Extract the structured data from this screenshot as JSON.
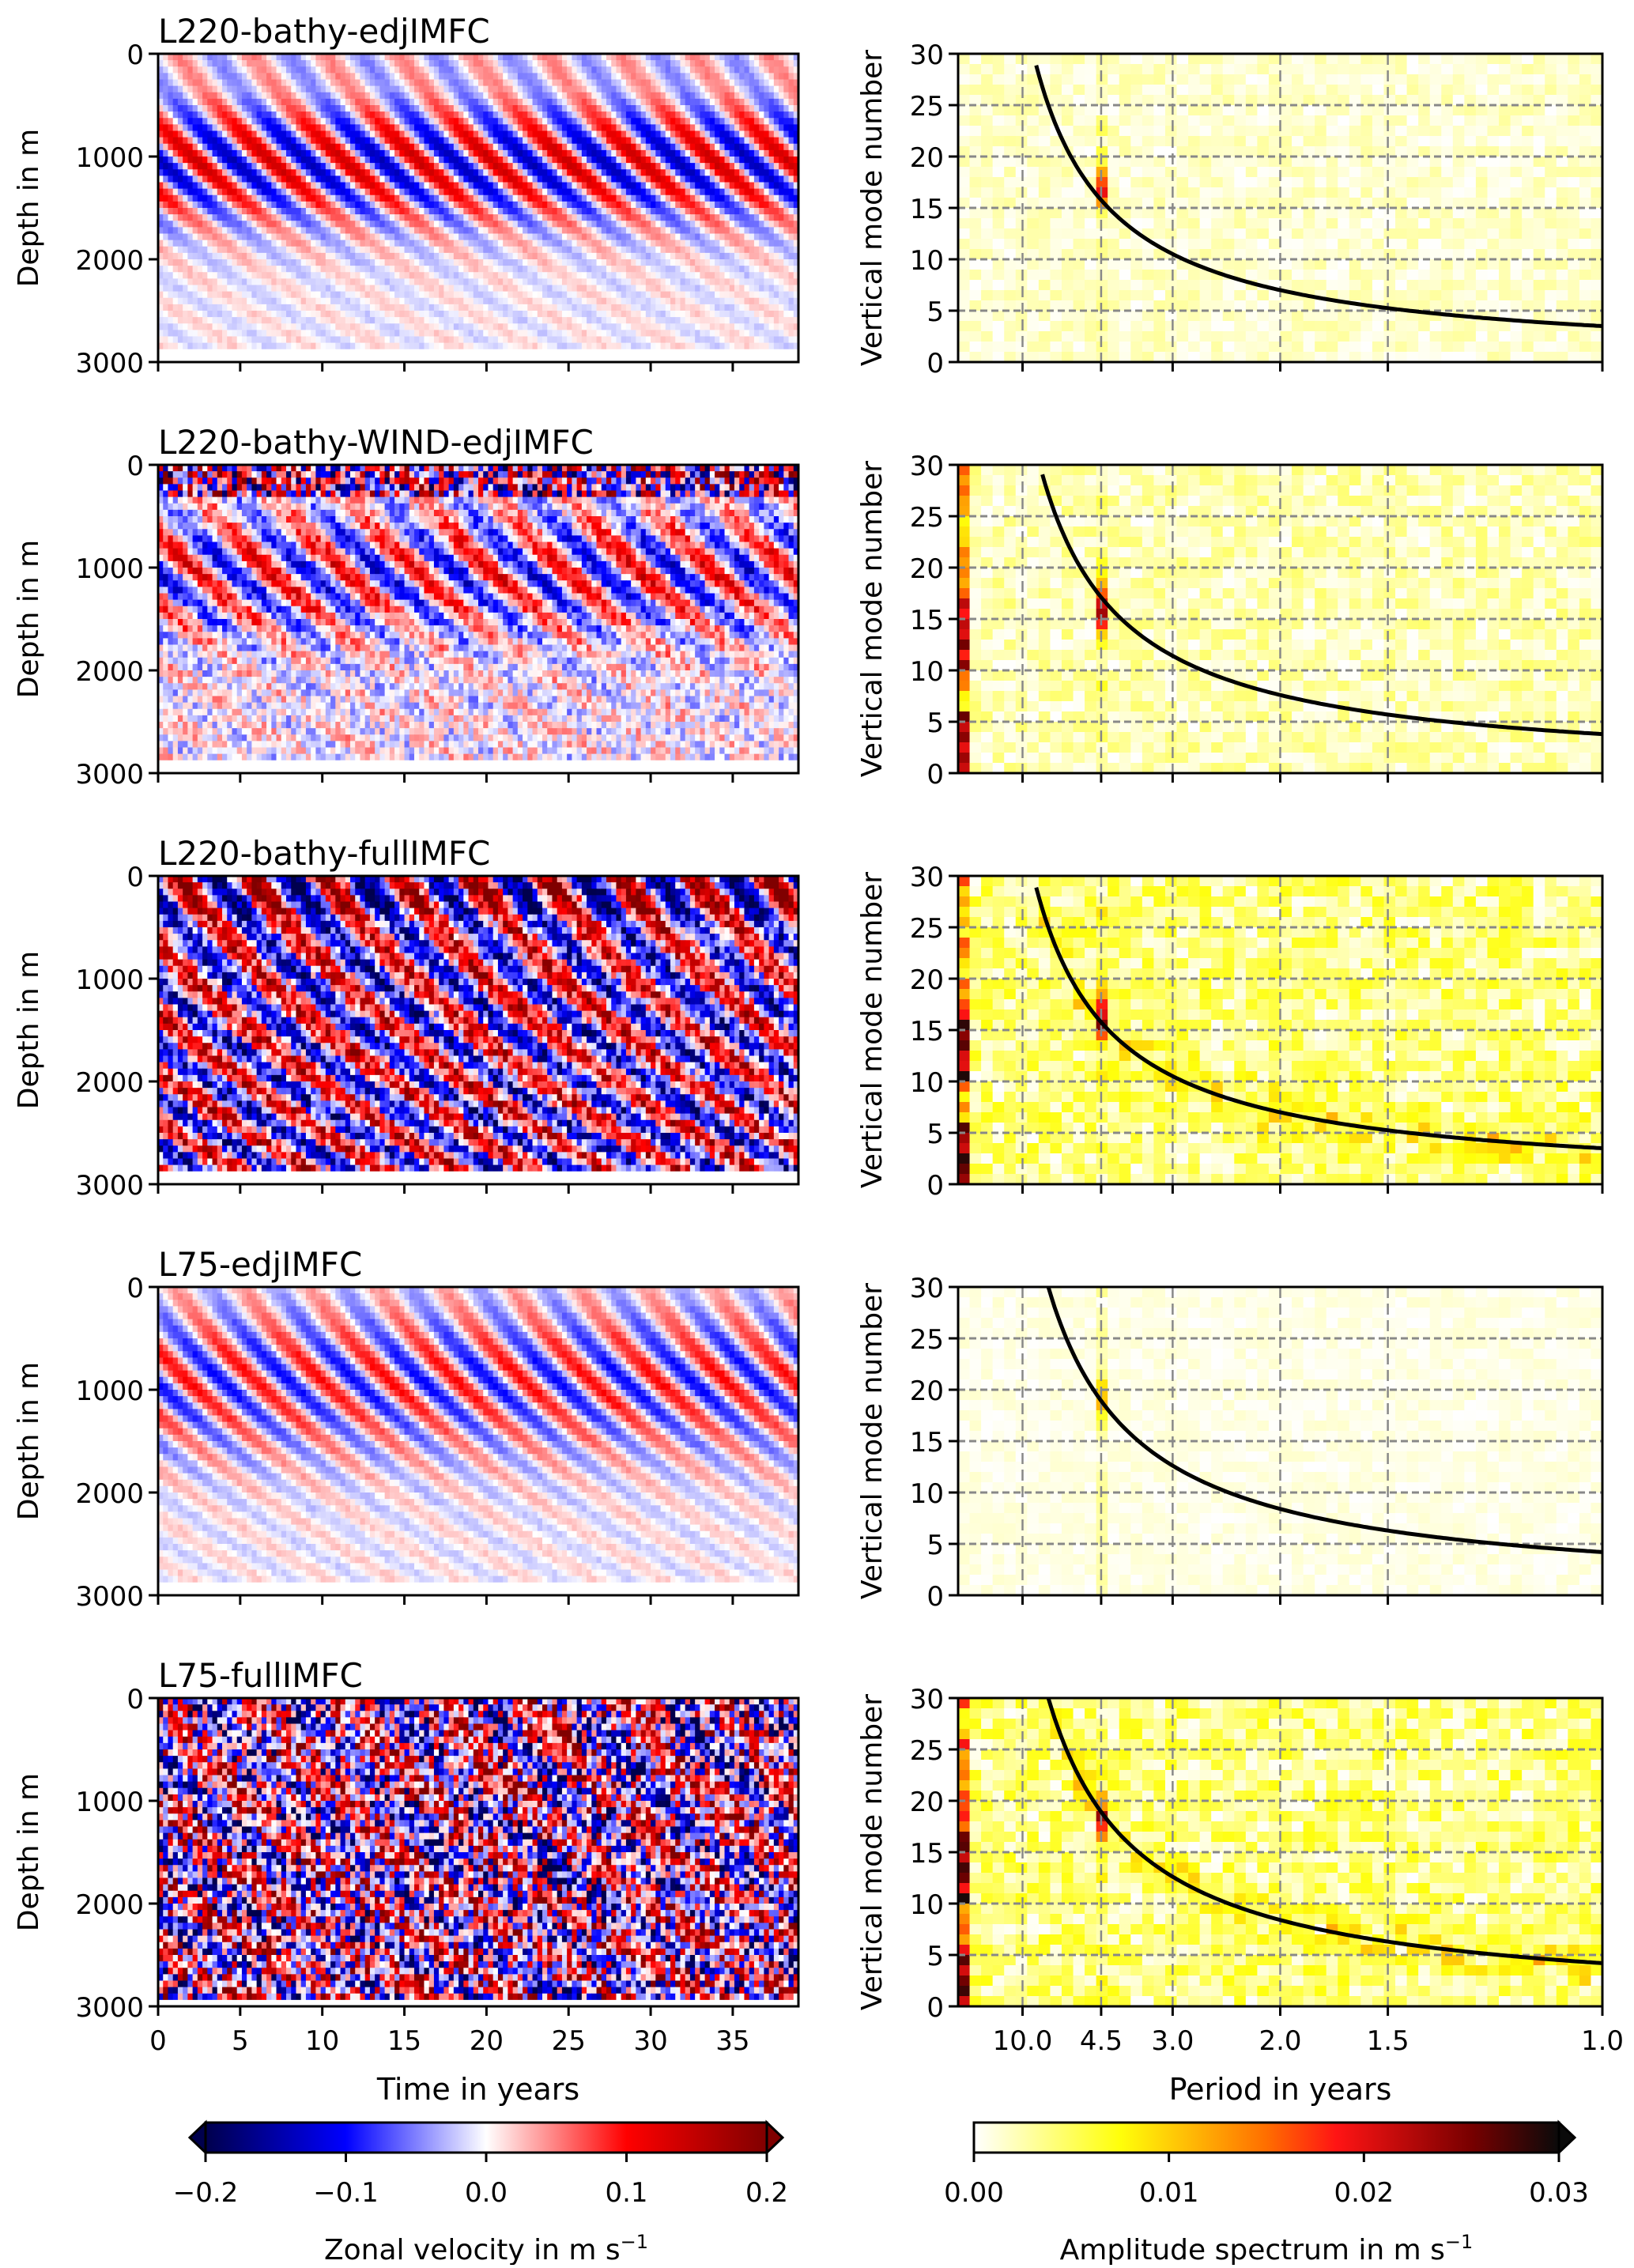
{
  "chart_data": [
    {
      "type": "heatmap",
      "title": "L220-bathy-edjIMFC",
      "xlabel": "",
      "ylabel": "Depth in m",
      "xlim": [
        0,
        39
      ],
      "ylim": [
        3000,
        0
      ],
      "xticks": [
        0,
        5,
        10,
        15,
        20,
        25,
        30,
        35
      ],
      "yticks": [
        0,
        1000,
        2000,
        3000
      ],
      "pattern": "edj",
      "noise": 0.05,
      "bottom_m": 2900
    },
    {
      "type": "heatmap",
      "title": "",
      "xlabel": "",
      "ylabel": "Vertical mode number",
      "xlim_labels": [
        "10.0",
        "4.5",
        "3.0",
        "2.0",
        "1.5",
        "1.0"
      ],
      "ylim": [
        0,
        30
      ],
      "yticks": [
        0,
        5,
        10,
        15,
        20,
        25,
        30
      ],
      "curve_mode_at_1yr": 3.5,
      "peak": {
        "period": 4.5,
        "mode": 17,
        "amplitude": 0.016
      },
      "background": 0.002
    },
    {
      "type": "heatmap",
      "title": "L220-bathy-WIND-edjIMFC",
      "xlabel": "",
      "ylabel": "Depth in m",
      "xlim": [
        0,
        39
      ],
      "ylim": [
        3000,
        0
      ],
      "xticks": [
        0,
        5,
        10,
        15,
        20,
        25,
        30,
        35
      ],
      "yticks": [
        0,
        1000,
        2000,
        3000
      ],
      "pattern": "wind",
      "noise": 0.3,
      "bottom_m": 2900
    },
    {
      "type": "heatmap",
      "title": "",
      "xlabel": "",
      "ylabel": "Vertical mode number",
      "xlim_labels": [
        "10.0",
        "4.5",
        "3.0",
        "2.0",
        "1.5",
        "1.0"
      ],
      "ylim": [
        0,
        30
      ],
      "yticks": [
        0,
        5,
        10,
        15,
        20,
        25,
        30
      ],
      "curve_mode_at_1yr": 3.8,
      "peak": {
        "period": 4.5,
        "mode": 16,
        "amplitude": 0.02
      },
      "background": 0.003
    },
    {
      "type": "heatmap",
      "title": "L220-bathy-fullIMFC",
      "xlabel": "",
      "ylabel": "Depth in m",
      "xlim": [
        0,
        39
      ],
      "ylim": [
        3000,
        0
      ],
      "xticks": [
        0,
        5,
        10,
        15,
        20,
        25,
        30,
        35
      ],
      "yticks": [
        0,
        1000,
        2000,
        3000
      ],
      "pattern": "full",
      "noise": 0.6,
      "bottom_m": 2900
    },
    {
      "type": "heatmap",
      "title": "",
      "xlabel": "",
      "ylabel": "Vertical mode number",
      "xlim_labels": [
        "10.0",
        "4.5",
        "3.0",
        "2.0",
        "1.5",
        "1.0"
      ],
      "ylim": [
        0,
        30
      ],
      "yticks": [
        0,
        5,
        10,
        15,
        20,
        25,
        30
      ],
      "curve_mode_at_1yr": 3.5,
      "peak": {
        "period": 4.5,
        "mode": 16,
        "amplitude": 0.017
      },
      "background": 0.005
    },
    {
      "type": "heatmap",
      "title": "L75-edjIMFC",
      "xlabel": "",
      "ylabel": "Depth in m",
      "xlim": [
        0,
        39
      ],
      "ylim": [
        3000,
        0
      ],
      "xticks": [
        0,
        5,
        10,
        15,
        20,
        25,
        30,
        35
      ],
      "yticks": [
        0,
        1000,
        2000,
        3000
      ],
      "pattern": "l75edj",
      "noise": 0.05,
      "bottom_m": 2900
    },
    {
      "type": "heatmap",
      "title": "",
      "xlabel": "",
      "ylabel": "Vertical mode number",
      "xlim_labels": [
        "10.0",
        "4.5",
        "3.0",
        "2.0",
        "1.5",
        "1.0"
      ],
      "ylim": [
        0,
        30
      ],
      "yticks": [
        0,
        5,
        10,
        15,
        20,
        25,
        30
      ],
      "curve_mode_at_1yr": 4.2,
      "peak": {
        "period": 4.5,
        "mode": 19,
        "amplitude": 0.009
      },
      "background": 0.001
    },
    {
      "type": "heatmap",
      "title": "L75-fullIMFC",
      "xlabel": "Time in years",
      "ylabel": "Depth in m",
      "xlim": [
        0,
        39
      ],
      "ylim": [
        3000,
        0
      ],
      "xticks": [
        0,
        5,
        10,
        15,
        20,
        25,
        30,
        35
      ],
      "yticks": [
        0,
        1000,
        2000,
        3000
      ],
      "pattern": "l75full",
      "noise": 0.9,
      "bottom_m": 2950
    },
    {
      "type": "heatmap",
      "title": "",
      "xlabel": "Period in years",
      "ylabel": "Vertical mode number",
      "xlim_labels": [
        "10.0",
        "4.5",
        "3.0",
        "2.0",
        "1.5",
        "1.0"
      ],
      "ylim": [
        0,
        30
      ],
      "yticks": [
        0,
        5,
        10,
        15,
        20,
        25,
        30
      ],
      "curve_mode_at_1yr": 4.2,
      "peak": {
        "period": 4.5,
        "mode": 18,
        "amplitude": 0.012
      },
      "background": 0.005
    }
  ],
  "colorbars": [
    {
      "label": "Zonal velocity in m s",
      "label_sup": "−1",
      "ticks": [
        "−0.2",
        "−0.1",
        "0.0",
        "0.1",
        "0.2"
      ],
      "range": [
        -0.2,
        0.2
      ],
      "colormap": "seismic",
      "extend": "both"
    },
    {
      "label": "Amplitude spectrum in m s",
      "label_sup": "−1",
      "ticks": [
        "0.00",
        "0.01",
        "0.02",
        "0.03"
      ],
      "range": [
        0,
        0.03
      ],
      "colormap": "hot_r",
      "extend": "max"
    }
  ]
}
